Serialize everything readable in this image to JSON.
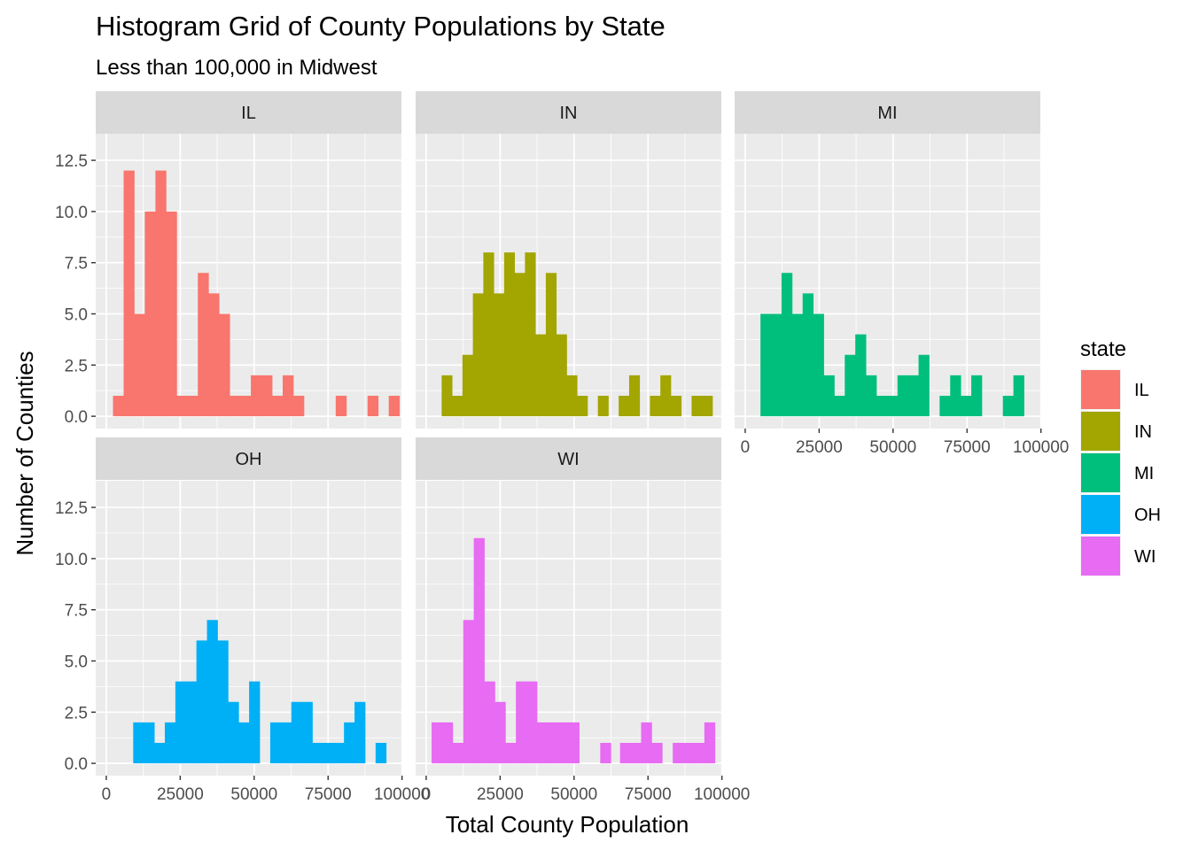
{
  "title": "Histogram Grid of County Populations by State",
  "subtitle": "Less than 100,000 in Midwest",
  "xlabel": "Total County Population",
  "ylabel": "Number of Counties",
  "legend": {
    "title": "state",
    "entries": [
      {
        "label": "IL",
        "color": "#F8766D"
      },
      {
        "label": "IN",
        "color": "#A3A500"
      },
      {
        "label": "MI",
        "color": "#00BF7D"
      },
      {
        "label": "OH",
        "color": "#00B0F6"
      },
      {
        "label": "WI",
        "color": "#E76BF3"
      }
    ]
  },
  "chart_data": {
    "type": "bar",
    "subtype": "faceted histogram",
    "facet_variable": "state",
    "xlim": [
      -3575,
      99800
    ],
    "ylim": [
      -0.6,
      13.8
    ],
    "x_ticks": [
      0,
      25000,
      50000,
      75000,
      100000
    ],
    "x_tick_labels": [
      "0",
      "25000",
      "50000",
      "75000",
      "100000"
    ],
    "y_ticks": [
      0,
      2.5,
      5,
      7.5,
      10,
      12.5
    ],
    "y_tick_labels": [
      "0.0",
      "2.5",
      "5.0",
      "7.5",
      "10.0",
      "12.5"
    ],
    "grid": true,
    "legend_position": "right",
    "panels": [
      {
        "name": "IL",
        "color": "#F8766D",
        "bins": [
          {
            "x0": 2270,
            "x1": 5870,
            "count": 1
          },
          {
            "x0": 5870,
            "x1": 9440,
            "count": 12
          },
          {
            "x0": 9440,
            "x1": 13030,
            "count": 5
          },
          {
            "x0": 13030,
            "x1": 16620,
            "count": 10
          },
          {
            "x0": 16620,
            "x1": 20200,
            "count": 12
          },
          {
            "x0": 20200,
            "x1": 23790,
            "count": 10
          },
          {
            "x0": 23790,
            "x1": 27370,
            "count": 1
          },
          {
            "x0": 27370,
            "x1": 30960,
            "count": 1
          },
          {
            "x0": 30960,
            "x1": 34550,
            "count": 7
          },
          {
            "x0": 34550,
            "x1": 38130,
            "count": 6
          },
          {
            "x0": 38130,
            "x1": 41720,
            "count": 5
          },
          {
            "x0": 41720,
            "x1": 45300,
            "count": 1
          },
          {
            "x0": 45300,
            "x1": 48890,
            "count": 1
          },
          {
            "x0": 48890,
            "x1": 52480,
            "count": 2
          },
          {
            "x0": 52480,
            "x1": 56060,
            "count": 2
          },
          {
            "x0": 56060,
            "x1": 59650,
            "count": 1
          },
          {
            "x0": 59650,
            "x1": 63230,
            "count": 2
          },
          {
            "x0": 63230,
            "x1": 66820,
            "count": 1
          },
          {
            "x0": 77580,
            "x1": 81170,
            "count": 1
          },
          {
            "x0": 88340,
            "x1": 91920,
            "count": 1
          },
          {
            "x0": 95510,
            "x1": 99100,
            "count": 1
          }
        ]
      },
      {
        "name": "IN",
        "color": "#A3A500",
        "bins": [
          {
            "x0": 5230,
            "x1": 8750,
            "count": 2
          },
          {
            "x0": 8750,
            "x1": 12270,
            "count": 1
          },
          {
            "x0": 12270,
            "x1": 15790,
            "count": 3
          },
          {
            "x0": 15790,
            "x1": 19320,
            "count": 6
          },
          {
            "x0": 19320,
            "x1": 22840,
            "count": 8
          },
          {
            "x0": 22840,
            "x1": 26360,
            "count": 6
          },
          {
            "x0": 26360,
            "x1": 29880,
            "count": 8
          },
          {
            "x0": 29880,
            "x1": 33400,
            "count": 7
          },
          {
            "x0": 33400,
            "x1": 36920,
            "count": 8
          },
          {
            "x0": 36920,
            "x1": 40450,
            "count": 4
          },
          {
            "x0": 40450,
            "x1": 43970,
            "count": 7
          },
          {
            "x0": 43970,
            "x1": 47490,
            "count": 4
          },
          {
            "x0": 47490,
            "x1": 51010,
            "count": 2
          },
          {
            "x0": 51010,
            "x1": 54530,
            "count": 1
          },
          {
            "x0": 58050,
            "x1": 61570,
            "count": 1
          },
          {
            "x0": 65090,
            "x1": 68620,
            "count": 1
          },
          {
            "x0": 68620,
            "x1": 72140,
            "count": 2
          },
          {
            "x0": 75660,
            "x1": 79180,
            "count": 1
          },
          {
            "x0": 79180,
            "x1": 82700,
            "count": 2
          },
          {
            "x0": 82700,
            "x1": 86220,
            "count": 1
          },
          {
            "x0": 89740,
            "x1": 93270,
            "count": 1
          },
          {
            "x0": 93270,
            "x1": 96790,
            "count": 1
          }
        ]
      },
      {
        "name": "MI",
        "color": "#00BF7D",
        "bins": [
          {
            "x0": 5160,
            "x1": 8720,
            "count": 5
          },
          {
            "x0": 8720,
            "x1": 12290,
            "count": 5
          },
          {
            "x0": 12290,
            "x1": 15850,
            "count": 7
          },
          {
            "x0": 15850,
            "x1": 19420,
            "count": 5
          },
          {
            "x0": 19420,
            "x1": 22980,
            "count": 6
          },
          {
            "x0": 22980,
            "x1": 26540,
            "count": 5
          },
          {
            "x0": 26540,
            "x1": 30110,
            "count": 2
          },
          {
            "x0": 30110,
            "x1": 33670,
            "count": 1
          },
          {
            "x0": 33670,
            "x1": 37230,
            "count": 3
          },
          {
            "x0": 37230,
            "x1": 40800,
            "count": 4
          },
          {
            "x0": 40800,
            "x1": 44360,
            "count": 2
          },
          {
            "x0": 44360,
            "x1": 47930,
            "count": 1
          },
          {
            "x0": 47930,
            "x1": 51490,
            "count": 1
          },
          {
            "x0": 51490,
            "x1": 55050,
            "count": 2
          },
          {
            "x0": 55050,
            "x1": 58620,
            "count": 2
          },
          {
            "x0": 58620,
            "x1": 62180,
            "count": 3
          },
          {
            "x0": 65740,
            "x1": 69310,
            "count": 1
          },
          {
            "x0": 69310,
            "x1": 72870,
            "count": 2
          },
          {
            "x0": 72870,
            "x1": 76440,
            "count": 1
          },
          {
            "x0": 76440,
            "x1": 80000,
            "count": 2
          },
          {
            "x0": 87130,
            "x1": 90690,
            "count": 1
          },
          {
            "x0": 90690,
            "x1": 94250,
            "count": 2
          }
        ]
      },
      {
        "name": "OH",
        "color": "#00B0F6",
        "bins": [
          {
            "x0": 9100,
            "x1": 12670,
            "count": 2
          },
          {
            "x0": 12670,
            "x1": 16230,
            "count": 2
          },
          {
            "x0": 16230,
            "x1": 19790,
            "count": 1
          },
          {
            "x0": 19790,
            "x1": 23360,
            "count": 2
          },
          {
            "x0": 23360,
            "x1": 26920,
            "count": 4
          },
          {
            "x0": 26920,
            "x1": 30480,
            "count": 4
          },
          {
            "x0": 30480,
            "x1": 34050,
            "count": 6
          },
          {
            "x0": 34050,
            "x1": 37610,
            "count": 7
          },
          {
            "x0": 37610,
            "x1": 41170,
            "count": 6
          },
          {
            "x0": 41170,
            "x1": 44740,
            "count": 3
          },
          {
            "x0": 44740,
            "x1": 48300,
            "count": 2
          },
          {
            "x0": 48300,
            "x1": 51860,
            "count": 4
          },
          {
            "x0": 55430,
            "x1": 58990,
            "count": 2
          },
          {
            "x0": 58990,
            "x1": 62550,
            "count": 2
          },
          {
            "x0": 62550,
            "x1": 66120,
            "count": 3
          },
          {
            "x0": 66120,
            "x1": 69680,
            "count": 3
          },
          {
            "x0": 69680,
            "x1": 73240,
            "count": 1
          },
          {
            "x0": 73240,
            "x1": 76810,
            "count": 1
          },
          {
            "x0": 76810,
            "x1": 80370,
            "count": 1
          },
          {
            "x0": 80370,
            "x1": 83930,
            "count": 2
          },
          {
            "x0": 83930,
            "x1": 87500,
            "count": 3
          },
          {
            "x0": 91060,
            "x1": 94620,
            "count": 1
          }
        ]
      },
      {
        "name": "WI",
        "color": "#E76BF3",
        "bins": [
          {
            "x0": 1830,
            "x1": 5390,
            "count": 2
          },
          {
            "x0": 5390,
            "x1": 8960,
            "count": 2
          },
          {
            "x0": 8960,
            "x1": 12520,
            "count": 1
          },
          {
            "x0": 12520,
            "x1": 16090,
            "count": 7
          },
          {
            "x0": 16090,
            "x1": 19650,
            "count": 11
          },
          {
            "x0": 19650,
            "x1": 23210,
            "count": 4
          },
          {
            "x0": 23210,
            "x1": 26780,
            "count": 3
          },
          {
            "x0": 26780,
            "x1": 30340,
            "count": 1
          },
          {
            "x0": 30340,
            "x1": 33910,
            "count": 4
          },
          {
            "x0": 33910,
            "x1": 37470,
            "count": 4
          },
          {
            "x0": 37470,
            "x1": 41030,
            "count": 2
          },
          {
            "x0": 41030,
            "x1": 44600,
            "count": 2
          },
          {
            "x0": 44600,
            "x1": 48160,
            "count": 2
          },
          {
            "x0": 48160,
            "x1": 51730,
            "count": 2
          },
          {
            "x0": 58850,
            "x1": 62420,
            "count": 1
          },
          {
            "x0": 65550,
            "x1": 69110,
            "count": 1
          },
          {
            "x0": 69110,
            "x1": 72670,
            "count": 1
          },
          {
            "x0": 72670,
            "x1": 76240,
            "count": 2
          },
          {
            "x0": 76240,
            "x1": 79800,
            "count": 1
          },
          {
            "x0": 83370,
            "x1": 86930,
            "count": 1
          },
          {
            "x0": 86930,
            "x1": 90490,
            "count": 1
          },
          {
            "x0": 90490,
            "x1": 94060,
            "count": 1
          },
          {
            "x0": 94060,
            "x1": 97620,
            "count": 2
          }
        ]
      }
    ]
  }
}
